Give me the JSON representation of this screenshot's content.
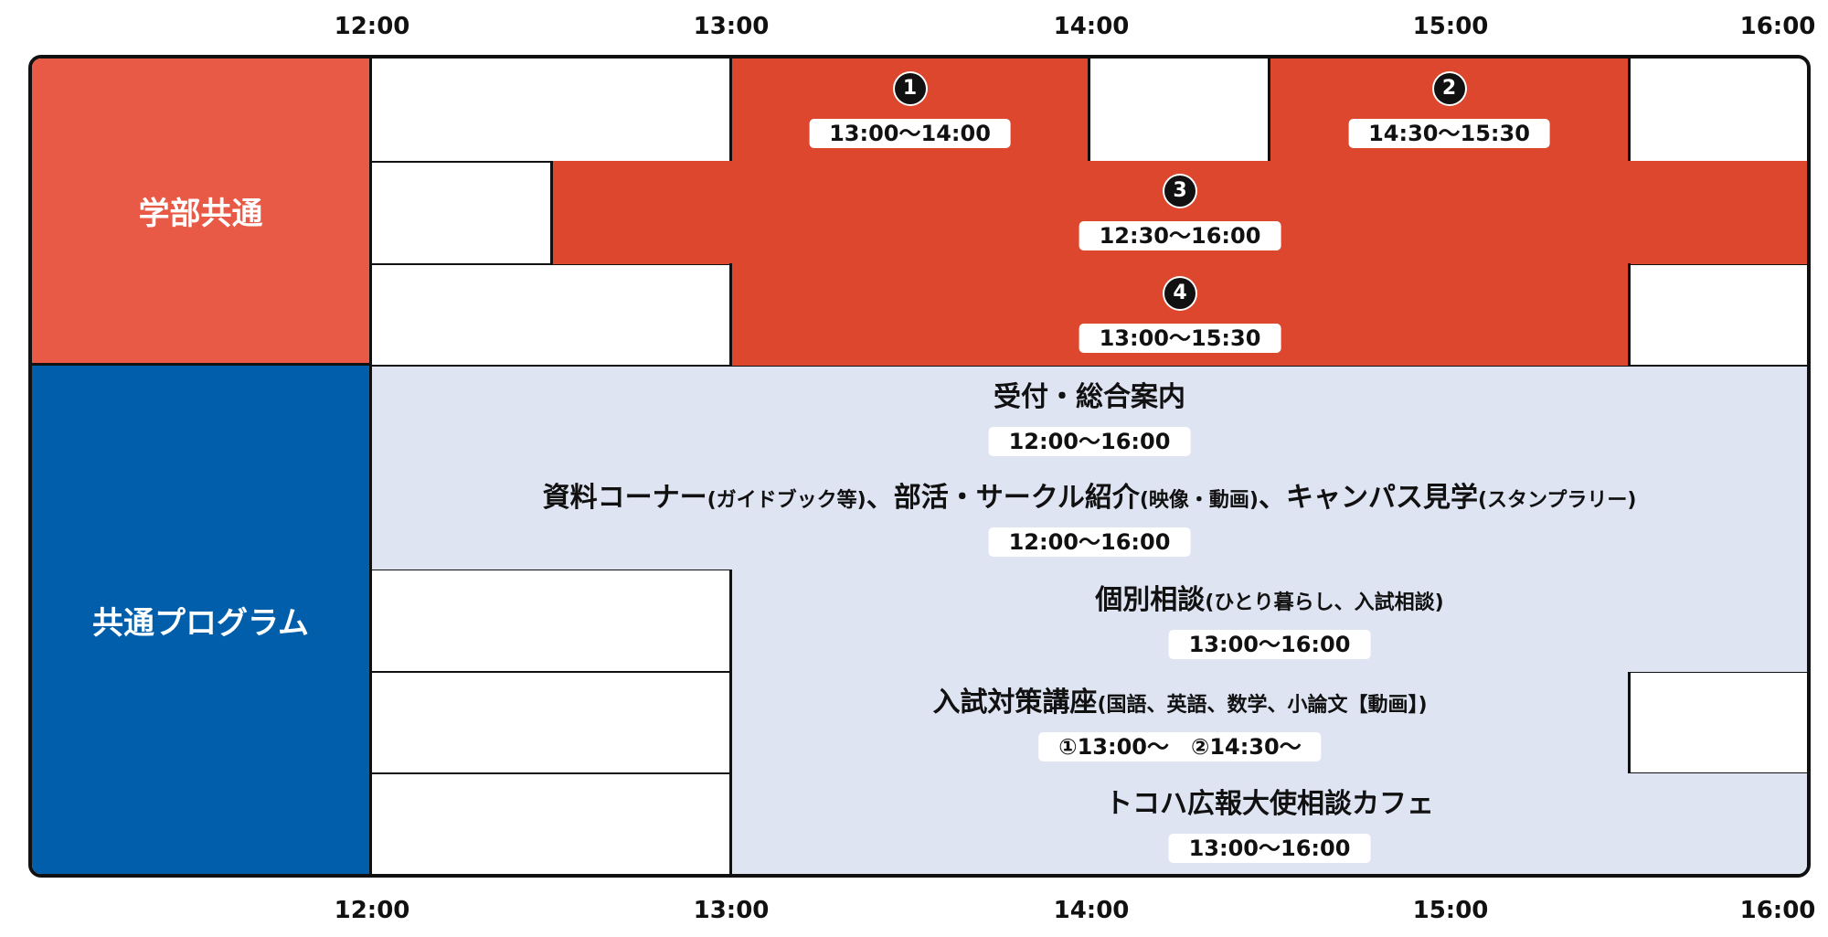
{
  "time_axis": {
    "ticks": [
      "12:00",
      "13:00",
      "14:00",
      "15:00",
      "16:00"
    ]
  },
  "categories": {
    "gakubu": "学部共通",
    "kyotsu": "共通プログラム"
  },
  "faculty_sessions": [
    {
      "number": "1",
      "time": "13:00〜14:00",
      "start": "13:00",
      "end": "14:00"
    },
    {
      "number": "2",
      "time": "14:30〜15:30",
      "start": "14:30",
      "end": "15:30"
    },
    {
      "number": "3",
      "time": "12:30〜16:00",
      "start": "12:30",
      "end": "16:00"
    },
    {
      "number": "4",
      "time": "13:00〜15:30",
      "start": "13:00",
      "end": "15:30"
    }
  ],
  "programs": [
    {
      "title": "受付・総合案内",
      "note": "",
      "time": "12:00〜16:00",
      "start": "12:00",
      "end": "16:00"
    },
    {
      "title": "資料コーナー",
      "note_a": "(ガイドブック等)",
      "title_b": "、部活・サークル紹介",
      "note_b": "(映像・動画)",
      "title_c": "、キャンパス見学",
      "note_c": "(スタンプラリー)",
      "time": "12:00〜16:00",
      "start": "12:00",
      "end": "16:00"
    },
    {
      "title": "個別相談",
      "note": "(ひとり暮らし、入試相談)",
      "time": "13:00〜16:00",
      "start": "13:00",
      "end": "16:00"
    },
    {
      "title": "入試対策講座",
      "note": "(国語、英語、数学、小論文【動画】)",
      "time": "①13:00〜　②14:30〜",
      "start": "13:00",
      "end": "15:30"
    },
    {
      "title": "トコハ広報大使相談カフェ",
      "note": "",
      "time": "13:00〜16:00",
      "start": "13:00",
      "end": "16:00"
    }
  ],
  "colors": {
    "faculty_category": "#e95a46",
    "faculty_bar": "#dc472d",
    "common_category": "#005eab",
    "common_bar": "#dfe4f3"
  }
}
